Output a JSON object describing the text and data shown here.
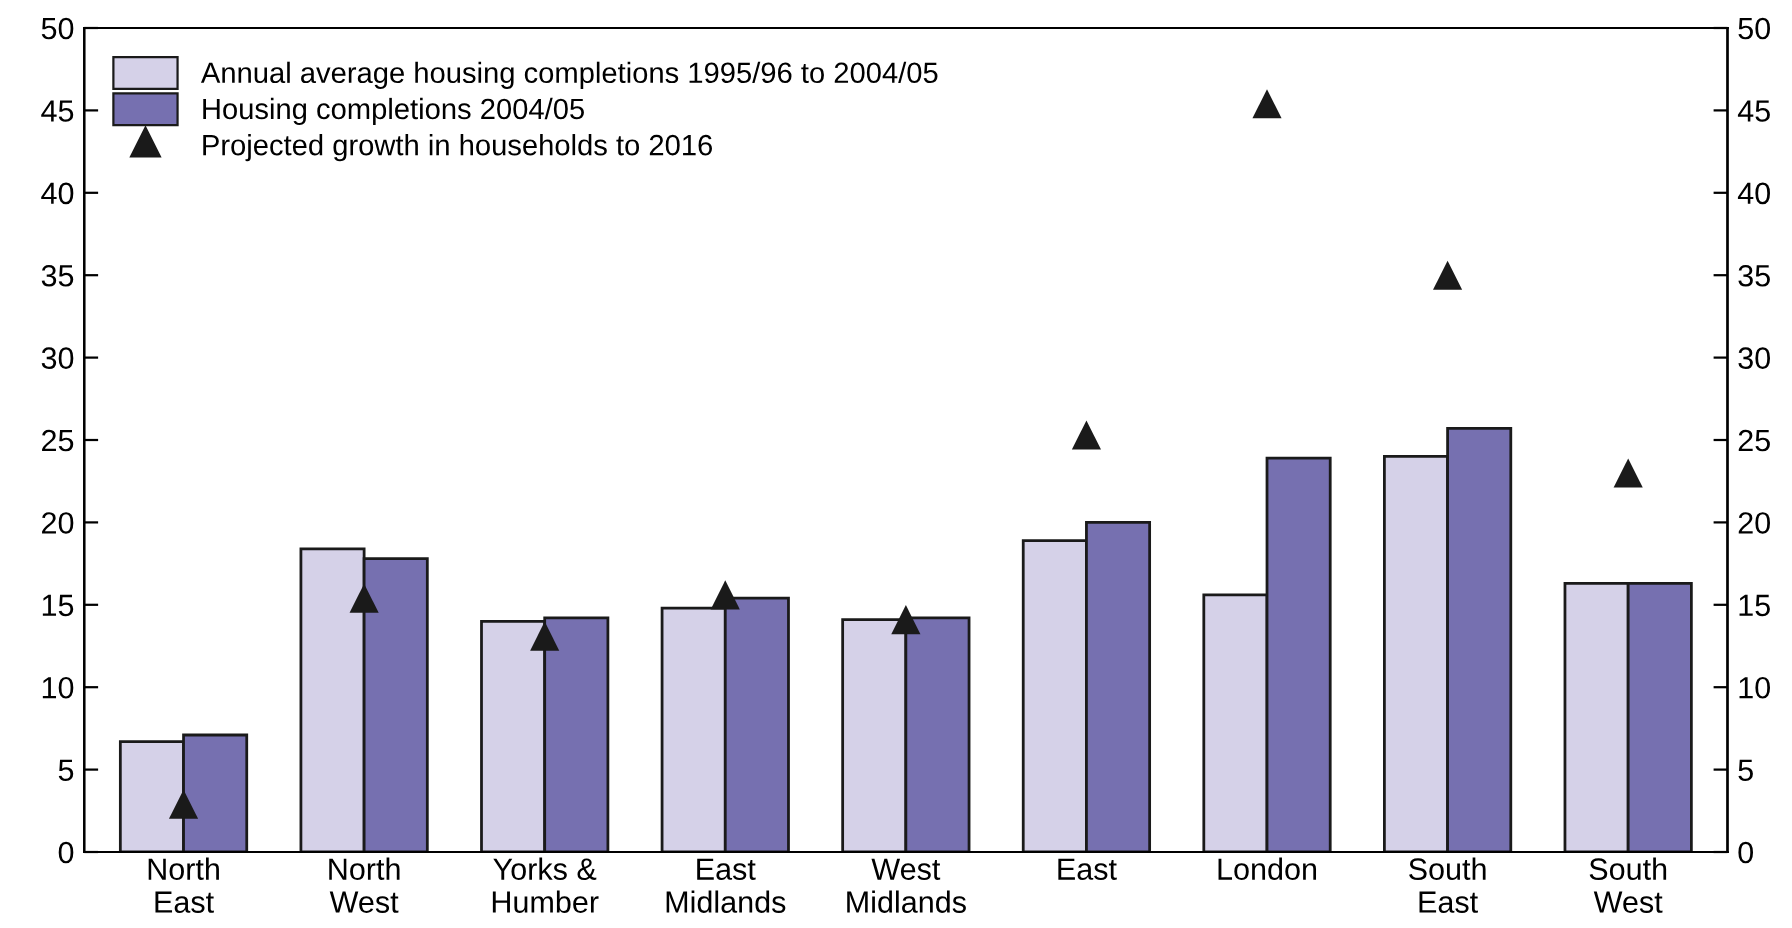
{
  "chart_data": {
    "type": "bar",
    "categories": [
      "North\nEast",
      "North\nWest",
      "Yorks &\nHumber",
      "East\nMidlands",
      "West\nMidlands",
      "East",
      "London",
      "South\nEast",
      "South\nWest"
    ],
    "series": [
      {
        "name": "Annual average housing completions 1995/96 to 2004/05",
        "color": "#d5d1e8",
        "values": [
          6.7,
          18.4,
          14.0,
          14.8,
          14.1,
          18.9,
          15.6,
          24.0,
          16.3
        ]
      },
      {
        "name": "Housing completions 2004/05",
        "color": "#7670b0",
        "values": [
          7.1,
          17.8,
          14.2,
          15.4,
          14.2,
          20.0,
          23.9,
          25.7,
          16.3
        ]
      },
      {
        "name": "Projected growth in households to 2016",
        "type": "scatter",
        "marker": "triangle",
        "color": "#1a1a1a",
        "values": [
          2.9,
          15.4,
          13.1,
          15.6,
          14.1,
          25.3,
          45.4,
          35.0,
          23.0
        ]
      }
    ],
    "ylim": [
      0,
      50
    ],
    "yticks": [
      0,
      5,
      10,
      15,
      20,
      25,
      30,
      35,
      40,
      45,
      50
    ],
    "y2lim": [
      0,
      50
    ],
    "y2ticks": [
      0,
      5,
      10,
      15,
      20,
      25,
      30,
      35,
      40,
      45,
      50
    ],
    "grid": false,
    "legend": "top left"
  }
}
